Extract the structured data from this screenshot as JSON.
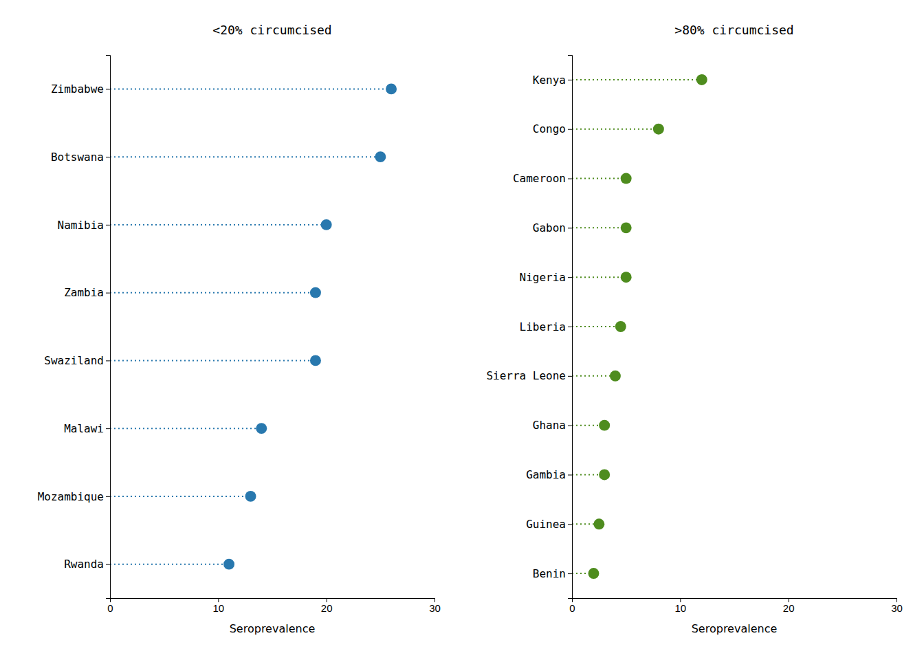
{
  "chart_data": [
    {
      "type": "lollipop",
      "orientation": "horizontal",
      "title": "<20% circumcised",
      "categories": [
        "Zimbabwe",
        "Botswana",
        "Namibia",
        "Zambia",
        "Swaziland",
        "Malawi",
        "Mozambique",
        "Rwanda"
      ],
      "values": [
        26,
        25,
        20,
        19,
        19,
        14,
        13,
        11
      ],
      "color": "#2878ae",
      "xlabel": "Seroprevalence",
      "xlim": [
        0,
        30
      ],
      "xticks": [
        0,
        10,
        20,
        30
      ],
      "grid": false,
      "line_style": "dotted",
      "marker": "circle"
    },
    {
      "type": "lollipop",
      "orientation": "horizontal",
      "title": ">80% circumcised",
      "categories": [
        "Kenya",
        "Congo",
        "Cameroon",
        "Gabon",
        "Nigeria",
        "Liberia",
        "Sierra Leone",
        "Ghana",
        "Gambia",
        "Guinea",
        "Benin"
      ],
      "values": [
        12,
        8,
        5,
        5,
        5,
        4.5,
        4,
        3,
        3,
        2.5,
        2
      ],
      "color": "#4e8c1e",
      "xlabel": "Seroprevalence",
      "xlim": [
        0,
        30
      ],
      "xticks": [
        0,
        10,
        20,
        30
      ],
      "grid": false,
      "line_style": "dotted",
      "marker": "circle"
    }
  ]
}
